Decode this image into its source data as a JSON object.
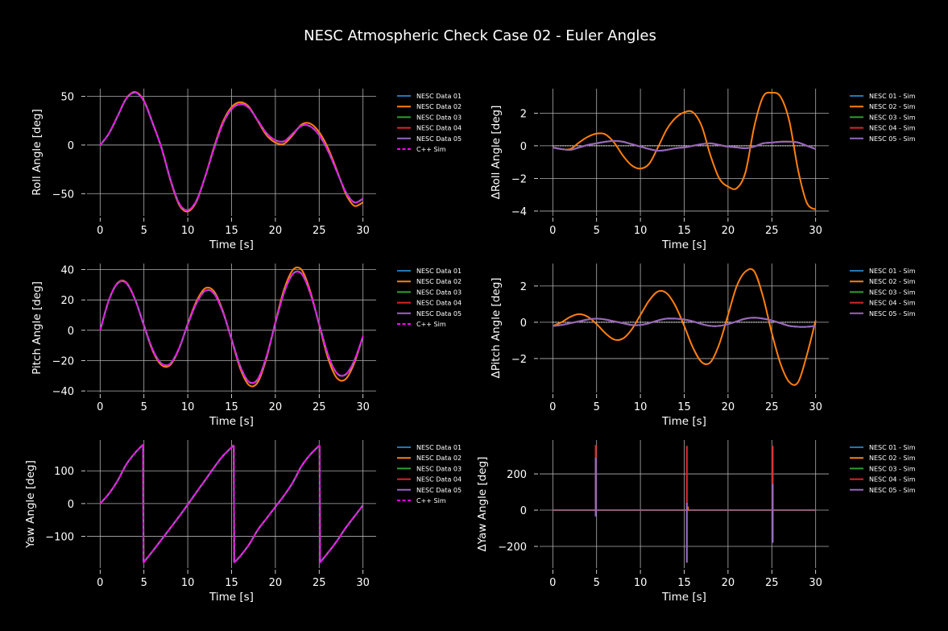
{
  "chart_data": {
    "type": "line",
    "title": "NESC Atmospheric Check Case 02 - Euler Angles",
    "colors": {
      "NESC Data 01": "#1f77b4",
      "NESC Data 02": "#ff7f0e",
      "NESC Data 03": "#2ca02c",
      "NESC Data 04": "#d62728",
      "NESC Data 05": "#9467bd",
      "C++ Sim": "#ff00ff",
      "zero_line": "#ffffff",
      "grid": "#b0b0b0"
    },
    "t": [
      0,
      1,
      2,
      3,
      4,
      5,
      6,
      7,
      8,
      9,
      10,
      11,
      12,
      13,
      14,
      15,
      16,
      17,
      18,
      19,
      20,
      21,
      22,
      23,
      24,
      25,
      26,
      27,
      28,
      29,
      30
    ],
    "panels": [
      {
        "id": "roll",
        "kind": "angle",
        "ylabel": "Roll Angle [deg]",
        "xlabel": "Time [s]",
        "xlim": [
          -1.5,
          31.5
        ],
        "xticks": [
          0,
          5,
          10,
          15,
          20,
          25,
          30
        ],
        "ylim": [
          -73,
          58
        ],
        "yticks": [
          -50,
          0,
          50
        ],
        "legend": [
          "NESC Data 01",
          "NESC Data 02",
          "NESC Data 03",
          "NESC Data 04",
          "NESC Data 05",
          "C++ Sim"
        ],
        "legend_loc": "outside-right-top",
        "sim": [
          0,
          12,
          30,
          48,
          54,
          45,
          22,
          -3,
          -35,
          -60,
          -67,
          -57,
          -32,
          -3,
          22,
          37,
          42,
          38,
          25,
          12,
          5,
          4,
          12,
          20,
          19,
          10,
          -6,
          -27,
          -48,
          -59,
          -55
        ]
      },
      {
        "id": "droll",
        "kind": "delta",
        "ylabel": "ΔRoll Angle [deg]",
        "xlabel": "Time [s]",
        "xlim": [
          -1.5,
          31.5
        ],
        "xticks": [
          0,
          5,
          10,
          15,
          20,
          25,
          30
        ],
        "ylim": [
          -4.3,
          3.5
        ],
        "yticks": [
          -4,
          -2,
          0,
          2
        ],
        "legend": [
          "NESC 01 - Sim",
          "NESC 02 - Sim",
          "NESC 03 - Sim",
          "NESC 04 - Sim",
          "NESC 05 - Sim"
        ],
        "legend_loc": "outside-right-top",
        "deltas": {
          "NESC 02 - Sim": [
            -0.1,
            -0.2,
            -0.2,
            0.2,
            0.55,
            0.75,
            0.7,
            0.2,
            -0.6,
            -1.2,
            -1.4,
            -1.1,
            -0.1,
            1.0,
            1.7,
            2.05,
            2.05,
            1.2,
            -0.6,
            -2.0,
            -2.5,
            -2.6,
            -1.6,
            1.2,
            3.0,
            3.25,
            3.0,
            1.5,
            -1.5,
            -3.5,
            -3.9
          ],
          "others": [
            -0.1,
            -0.2,
            -0.25,
            -0.1,
            0.05,
            0.15,
            0.25,
            0.3,
            0.25,
            0.1,
            -0.05,
            -0.2,
            -0.3,
            -0.25,
            -0.15,
            -0.1,
            0.0,
            0.1,
            0.15,
            0.05,
            -0.05,
            -0.1,
            -0.15,
            -0.05,
            0.15,
            0.2,
            0.25,
            0.25,
            0.2,
            0.0,
            -0.2
          ]
        }
      },
      {
        "id": "pitch",
        "kind": "angle",
        "ylabel": "Pitch Angle [deg]",
        "xlabel": "Time [s]",
        "xlim": [
          -1.5,
          31.5
        ],
        "xticks": [
          0,
          5,
          10,
          15,
          20,
          25,
          30
        ],
        "ylim": [
          -41,
          44
        ],
        "yticks": [
          -40,
          -20,
          0,
          20,
          40
        ],
        "legend": [
          "NESC Data 01",
          "NESC Data 02",
          "NESC Data 03",
          "NESC Data 04",
          "NESC Data 05",
          "C++ Sim"
        ],
        "legend_loc": "outside-right-top",
        "sim": [
          0,
          20,
          31,
          31,
          20,
          3,
          -13,
          -22,
          -22,
          -12,
          4,
          18,
          26,
          24,
          12,
          -6,
          -24,
          -34,
          -32,
          -17,
          5,
          25,
          37,
          37,
          24,
          4,
          -16,
          -28,
          -29,
          -20,
          -4
        ]
      },
      {
        "id": "dpitch",
        "kind": "delta",
        "ylabel": "ΔPitch Angle [deg]",
        "xlabel": "Time [s]",
        "xlim": [
          -1.5,
          31.5
        ],
        "xticks": [
          0,
          5,
          10,
          15,
          20,
          25,
          30
        ],
        "ylim": [
          -3.87,
          3.24
        ],
        "yticks": [
          -2,
          0,
          2
        ],
        "legend": [
          "NESC 01 - Sim",
          "NESC 02 - Sim",
          "NESC 03 - Sim",
          "NESC 04 - Sim",
          "NESC 05 - Sim"
        ],
        "legend_loc": "outside-right-top",
        "deltas": {
          "NESC 02 - Sim": [
            -0.2,
            0.0,
            0.3,
            0.45,
            0.3,
            -0.1,
            -0.6,
            -0.95,
            -0.9,
            -0.4,
            0.4,
            1.2,
            1.7,
            1.6,
            0.9,
            -0.2,
            -1.4,
            -2.2,
            -2.2,
            -1.2,
            0.4,
            2.0,
            2.8,
            2.8,
            1.4,
            -0.6,
            -2.3,
            -3.3,
            -3.3,
            -1.8,
            0.1
          ],
          "others": [
            -0.2,
            -0.15,
            -0.05,
            0.05,
            0.15,
            0.2,
            0.15,
            0.05,
            -0.05,
            -0.15,
            -0.15,
            -0.05,
            0.1,
            0.2,
            0.2,
            0.15,
            0.05,
            -0.1,
            -0.2,
            -0.2,
            -0.1,
            0.05,
            0.2,
            0.25,
            0.2,
            0.1,
            -0.05,
            -0.2,
            -0.25,
            -0.25,
            -0.2
          ]
        }
      },
      {
        "id": "yaw",
        "kind": "angle",
        "ylabel": "Yaw Angle [deg]",
        "xlabel": "Time [s]",
        "xlim": [
          -1.5,
          31.5
        ],
        "xticks": [
          0,
          5,
          10,
          15,
          20,
          25,
          30
        ],
        "ylim": [
          -197,
          194
        ],
        "yticks": [
          -100,
          0,
          100
        ],
        "legend": [
          "NESC Data 01",
          "NESC Data 02",
          "NESC Data 03",
          "NESC Data 04",
          "NESC Data 05",
          "C++ Sim"
        ],
        "legend_loc": "outside-right-top",
        "sim_xy": [
          [
            0,
            0
          ],
          [
            1,
            30
          ],
          [
            2,
            70
          ],
          [
            3,
            120
          ],
          [
            4,
            155
          ],
          [
            4.9,
            180
          ],
          [
            4.95,
            -180
          ],
          [
            6,
            -145
          ],
          [
            7,
            -110
          ],
          [
            8,
            -75
          ],
          [
            9,
            -40
          ],
          [
            10,
            -3
          ],
          [
            11,
            35
          ],
          [
            12,
            72
          ],
          [
            13,
            110
          ],
          [
            14,
            145
          ],
          [
            15.25,
            178
          ],
          [
            15.3,
            -180
          ],
          [
            16,
            -160
          ],
          [
            17,
            -125
          ],
          [
            18,
            -80
          ],
          [
            19,
            -45
          ],
          [
            20,
            -10
          ],
          [
            21,
            25
          ],
          [
            22,
            65
          ],
          [
            23,
            115
          ],
          [
            24,
            150
          ],
          [
            25.05,
            178
          ],
          [
            25.1,
            -180
          ],
          [
            26,
            -150
          ],
          [
            27,
            -115
          ],
          [
            28,
            -75
          ],
          [
            29,
            -40
          ],
          [
            30,
            -5
          ]
        ]
      },
      {
        "id": "dyaw",
        "kind": "spikes",
        "ylabel": "ΔYaw Angle [deg]",
        "xlabel": "Time [s]",
        "xlim": [
          -1.5,
          31.5
        ],
        "xticks": [
          0,
          5,
          10,
          15,
          20,
          25,
          30
        ],
        "ylim": [
          -320,
          387
        ],
        "yticks": [
          -200,
          0,
          200
        ],
        "legend": [
          "NESC 01 - Sim",
          "NESC 02 - Sim",
          "NESC 03 - Sim",
          "NESC 04 - Sim",
          "NESC 05 - Sim"
        ],
        "legend_loc": "outside-right-top",
        "spikes": {
          "NESC 02 - Sim": [
            {
              "t": 15.4,
              "min": 0,
              "max": 20
            }
          ],
          "NESC 04 - Sim": [
            {
              "t": 4.9,
              "min": 0,
              "max": 360
            },
            {
              "t": 15.3,
              "min": 0,
              "max": 355
            },
            {
              "t": 25.1,
              "min": 0,
              "max": 355
            }
          ],
          "NESC 05 - Sim": [
            {
              "t": 4.9,
              "min": -35,
              "max": 290
            },
            {
              "t": 15.3,
              "min": -290,
              "max": 40
            },
            {
              "t": 25.1,
              "min": -180,
              "max": 145
            }
          ]
        }
      }
    ]
  }
}
